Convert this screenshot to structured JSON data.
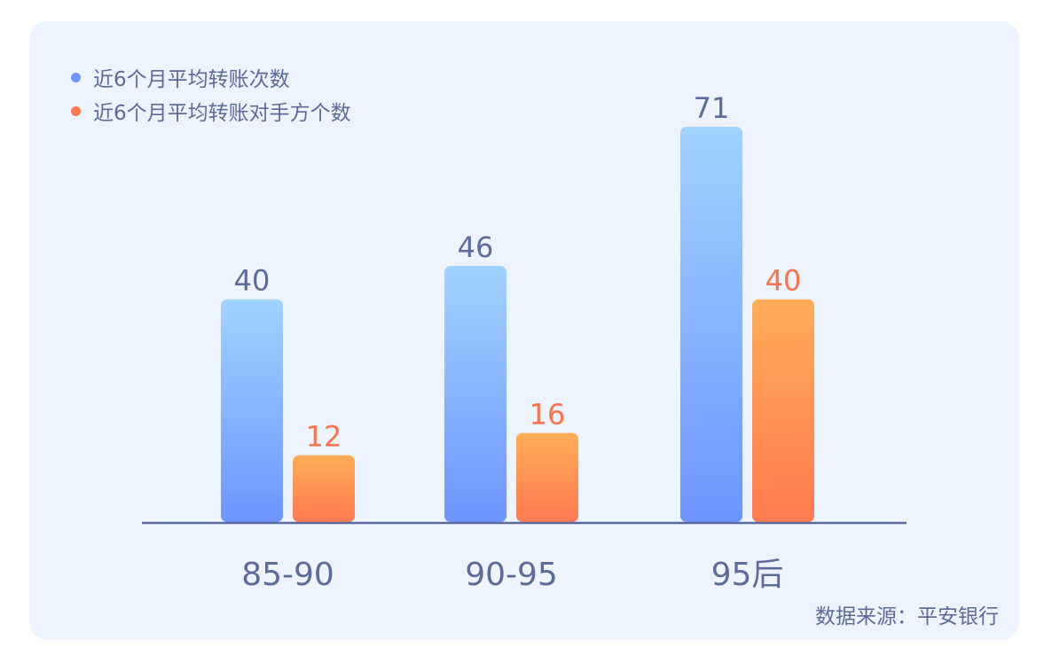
{
  "chart_data": {
    "type": "bar",
    "categories": [
      "85-90",
      "90-95",
      "95后"
    ],
    "series": [
      {
        "name": "近6个月平均转账次数",
        "values": [
          40,
          46,
          71
        ],
        "color": "#6e95ff",
        "color_top": "#a2d2ff",
        "label_color": "#5c6b99"
      },
      {
        "name": "近6个月平均转账对手方个数",
        "values": [
          12,
          16,
          40
        ],
        "color": "#ff7a52",
        "color_top": "#ffad58",
        "label_color": "#f8734e"
      }
    ],
    "ylim": [
      0,
      71
    ],
    "legend_placement": "top-left",
    "grid": false
  },
  "source_text": "数据来源：平安银行"
}
